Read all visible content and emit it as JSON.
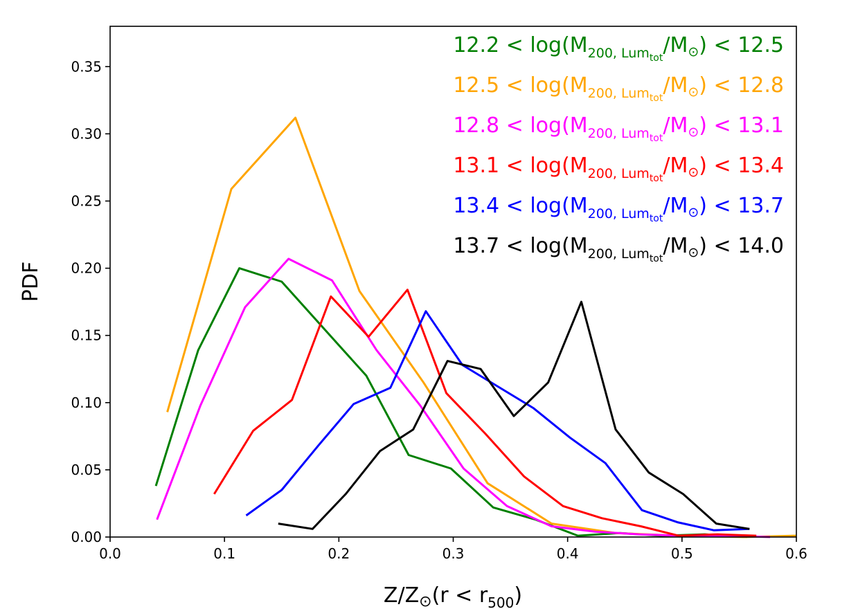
{
  "chart_data": {
    "type": "line",
    "title": "",
    "xlabel": {
      "main": "Z/Z",
      "sym": "⊙",
      "paren_open": "(r < r",
      "sub": "500",
      "paren_close": ")"
    },
    "ylabel": "PDF",
    "xlim": [
      0.0,
      0.6
    ],
    "ylim": [
      0.0,
      0.38
    ],
    "xticks": [
      0.0,
      0.1,
      0.2,
      0.3,
      0.4,
      0.5,
      0.6
    ],
    "xtick_labels": [
      "0.0",
      "0.1",
      "0.2",
      "0.3",
      "0.4",
      "0.5",
      "0.6"
    ],
    "yticks": [
      0.0,
      0.05,
      0.1,
      0.15,
      0.2,
      0.25,
      0.3,
      0.35
    ],
    "ytick_labels": [
      "0.00",
      "0.05",
      "0.10",
      "0.15",
      "0.20",
      "0.25",
      "0.30",
      "0.35"
    ],
    "legend_position": "top-right",
    "legend_template": {
      "mid": " < log(M",
      "sub": "200, Lum",
      "subsub": "tot",
      "slash": "/M",
      "sym": "⊙",
      "close": ") < "
    },
    "series": [
      {
        "name": "12.2-12.5",
        "lo": "12.2",
        "hi": "12.5",
        "color": "#008000",
        "x": [
          0.04,
          0.077,
          0.113,
          0.15,
          0.187,
          0.224,
          0.261,
          0.298,
          0.335,
          0.372,
          0.409,
          0.446,
          0.483,
          0.52,
          0.557
        ],
        "y": [
          0.038,
          0.139,
          0.2,
          0.19,
          0.155,
          0.12,
          0.061,
          0.051,
          0.022,
          0.013,
          0.001,
          0.003,
          0.001,
          0.002,
          0.0
        ]
      },
      {
        "name": "12.5-12.8",
        "lo": "12.5",
        "hi": "12.8",
        "color": "#FFA500",
        "x": [
          0.05,
          0.106,
          0.162,
          0.218,
          0.274,
          0.33,
          0.386,
          0.442,
          0.498,
          0.554,
          0.6
        ],
        "y": [
          0.093,
          0.259,
          0.312,
          0.183,
          0.115,
          0.04,
          0.01,
          0.003,
          0.001,
          0.0,
          0.001
        ]
      },
      {
        "name": "12.8-13.1",
        "lo": "12.8",
        "hi": "13.1",
        "color": "#FF00FF",
        "x": [
          0.041,
          0.079,
          0.118,
          0.156,
          0.194,
          0.233,
          0.271,
          0.309,
          0.347,
          0.386,
          0.424,
          0.462,
          0.5,
          0.539,
          0.577
        ],
        "y": [
          0.013,
          0.098,
          0.171,
          0.207,
          0.191,
          0.139,
          0.098,
          0.051,
          0.023,
          0.008,
          0.004,
          0.002,
          0.001,
          0.001,
          0.0
        ]
      },
      {
        "name": "13.1-13.4",
        "lo": "13.1",
        "hi": "13.4",
        "color": "#FF0000",
        "x": [
          0.091,
          0.125,
          0.159,
          0.193,
          0.226,
          0.26,
          0.294,
          0.328,
          0.362,
          0.396,
          0.43,
          0.464,
          0.497,
          0.531,
          0.565
        ],
        "y": [
          0.032,
          0.079,
          0.102,
          0.179,
          0.149,
          0.184,
          0.107,
          0.077,
          0.045,
          0.023,
          0.014,
          0.008,
          0.001,
          0.002,
          0.001
        ]
      },
      {
        "name": "13.4-13.7",
        "lo": "13.4",
        "hi": "13.7",
        "color": "#0000FF",
        "x": [
          0.119,
          0.15,
          0.182,
          0.213,
          0.245,
          0.276,
          0.308,
          0.339,
          0.37,
          0.402,
          0.433,
          0.465,
          0.496,
          0.528,
          0.559
        ],
        "y": [
          0.016,
          0.035,
          0.068,
          0.099,
          0.111,
          0.168,
          0.128,
          0.112,
          0.096,
          0.074,
          0.055,
          0.02,
          0.011,
          0.005,
          0.006
        ]
      },
      {
        "name": "13.7-14.0",
        "lo": "13.7",
        "hi": "14.0",
        "color": "#000000",
        "x": [
          0.147,
          0.177,
          0.206,
          0.236,
          0.265,
          0.295,
          0.324,
          0.353,
          0.383,
          0.412,
          0.442,
          0.471,
          0.501,
          0.53,
          0.559
        ],
        "y": [
          0.01,
          0.006,
          0.032,
          0.064,
          0.08,
          0.131,
          0.125,
          0.09,
          0.115,
          0.175,
          0.08,
          0.048,
          0.032,
          0.01,
          0.006
        ]
      }
    ]
  }
}
